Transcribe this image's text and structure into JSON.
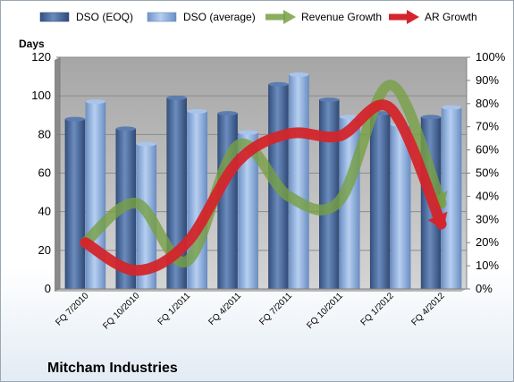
{
  "chart_data": {
    "type": "bar",
    "title": "",
    "company": "Mitcham Industries",
    "categories": [
      "FQ 7/2010",
      "FQ 10/2010",
      "FQ 1/2011",
      "FQ 4/2011",
      "FQ 7/2011",
      "FQ 10/2011",
      "FQ 1/2012",
      "FQ 4/2012"
    ],
    "ylabel": "Days",
    "ylim": [
      0,
      120
    ],
    "y_ticks": [
      "0",
      "20",
      "40",
      "60",
      "80",
      "100",
      "120"
    ],
    "y2lim": [
      0,
      100
    ],
    "y2_ticks": [
      "0%",
      "10%",
      "20%",
      "30%",
      "40%",
      "50%",
      "60%",
      "70%",
      "80%",
      "90%",
      "100%"
    ],
    "legend": "top",
    "series": [
      {
        "name": "DSO (EOQ)",
        "kind": "bar",
        "axis": "left",
        "values": [
          88,
          83,
          99,
          91,
          106,
          98,
          91,
          89
        ],
        "color": "#4f6f9f"
      },
      {
        "name": "DSO (average)",
        "kind": "bar",
        "axis": "left",
        "values": [
          97,
          75,
          92,
          81,
          111,
          89,
          85,
          94
        ],
        "color": "#8fb0de"
      },
      {
        "name": "Revenue Growth",
        "kind": "line",
        "axis": "right",
        "unit": "%",
        "values": [
          20,
          37,
          12,
          62,
          40,
          38,
          88,
          37
        ],
        "color": "#77a043"
      },
      {
        "name": "AR Growth",
        "kind": "line",
        "axis": "right",
        "unit": "%",
        "values": [
          20,
          8,
          20,
          55,
          67,
          66,
          78,
          28
        ],
        "color": "#d3252b"
      }
    ]
  }
}
